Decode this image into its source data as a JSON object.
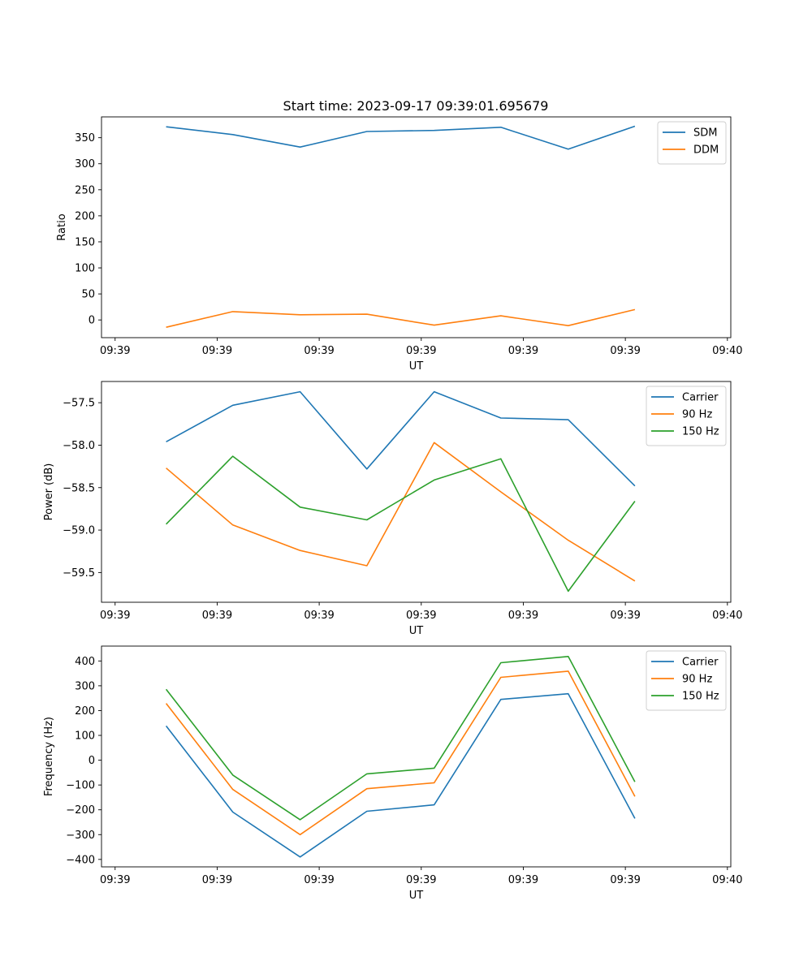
{
  "title": "Start time: 2023-09-17 09:39:01.695679",
  "colors": {
    "blue": "#1f77b4",
    "orange": "#ff7f0e",
    "green": "#2ca02c"
  },
  "chart_data": [
    {
      "type": "line",
      "name": "ratio",
      "xlabel": "UT",
      "ylabel": "Ratio",
      "xlim": [
        0,
        9.25
      ],
      "xticks": [
        0.2,
        1.7,
        3.2,
        4.7,
        6.2,
        7.7,
        9.2
      ],
      "xtick_labels": [
        "09:39",
        "09:39",
        "09:39",
        "09:39",
        "09:39",
        "09:39",
        "09:40"
      ],
      "ylim": [
        -34,
        390
      ],
      "yticks": [
        0,
        50,
        100,
        150,
        200,
        250,
        300,
        350
      ],
      "ytick_labels": [
        "0",
        "50",
        "100",
        "150",
        "200",
        "250",
        "300",
        "350"
      ],
      "legend_position": "top-right",
      "x": [
        0.95,
        1.93,
        2.92,
        3.9,
        4.89,
        5.87,
        6.86,
        7.84
      ],
      "series": [
        {
          "name": "SDM",
          "color": "#1f77b4",
          "values": [
            371,
            356,
            332,
            362,
            364,
            370,
            328,
            372
          ]
        },
        {
          "name": "DDM",
          "color": "#ff7f0e",
          "values": [
            -14,
            16,
            10,
            11,
            -10,
            8,
            -11,
            20
          ]
        }
      ]
    },
    {
      "type": "line",
      "name": "power",
      "xlabel": "UT",
      "ylabel": "Power (dB)",
      "xlim": [
        0,
        9.25
      ],
      "xticks": [
        0.2,
        1.7,
        3.2,
        4.7,
        6.2,
        7.7,
        9.2
      ],
      "xtick_labels": [
        "09:39",
        "09:39",
        "09:39",
        "09:39",
        "09:39",
        "09:39",
        "09:40"
      ],
      "ylim": [
        -59.85,
        -57.25
      ],
      "yticks": [
        -59.5,
        -59.0,
        -58.5,
        -58.0,
        -57.5
      ],
      "ytick_labels": [
        "−59.5",
        "−59.0",
        "−58.5",
        "−58.0",
        "−57.5"
      ],
      "legend_position": "top-right",
      "x": [
        0.95,
        1.93,
        2.92,
        3.9,
        4.89,
        5.87,
        6.86,
        7.84
      ],
      "series": [
        {
          "name": "Carrier",
          "color": "#1f77b4",
          "values": [
            -57.96,
            -57.53,
            -57.37,
            -58.28,
            -57.37,
            -57.68,
            -57.7,
            -58.48
          ]
        },
        {
          "name": "90 Hz",
          "color": "#ff7f0e",
          "values": [
            -58.27,
            -58.94,
            -59.24,
            -59.42,
            -57.97,
            -58.55,
            -59.12,
            -59.6
          ]
        },
        {
          "name": "150 Hz",
          "color": "#2ca02c",
          "values": [
            -58.93,
            -58.13,
            -58.73,
            -58.88,
            -58.41,
            -58.16,
            -59.72,
            -58.66
          ]
        }
      ]
    },
    {
      "type": "line",
      "name": "frequency",
      "xlabel": "UT",
      "ylabel": "Frequency (Hz)",
      "xlim": [
        0,
        9.25
      ],
      "xticks": [
        0.2,
        1.7,
        3.2,
        4.7,
        6.2,
        7.7,
        9.2
      ],
      "xtick_labels": [
        "09:39",
        "09:39",
        "09:39",
        "09:39",
        "09:39",
        "09:39",
        "09:40"
      ],
      "ylim": [
        -430,
        460
      ],
      "yticks": [
        -400,
        -300,
        -200,
        -100,
        0,
        100,
        200,
        300,
        400
      ],
      "ytick_labels": [
        "−400",
        "−300",
        "−200",
        "−100",
        "0",
        "100",
        "200",
        "300",
        "400"
      ],
      "legend_position": "top-right",
      "x": [
        0.95,
        1.93,
        2.92,
        3.9,
        4.89,
        5.87,
        6.86,
        7.84
      ],
      "series": [
        {
          "name": "Carrier",
          "color": "#1f77b4",
          "values": [
            138,
            -209,
            -390,
            -206,
            -180,
            245,
            268,
            -235
          ]
        },
        {
          "name": "90 Hz",
          "color": "#ff7f0e",
          "values": [
            229,
            -118,
            -300,
            -115,
            -91,
            334,
            359,
            -146
          ]
        },
        {
          "name": "150 Hz",
          "color": "#2ca02c",
          "values": [
            286,
            -60,
            -240,
            -55,
            -32,
            393,
            418,
            -87
          ]
        }
      ]
    }
  ]
}
